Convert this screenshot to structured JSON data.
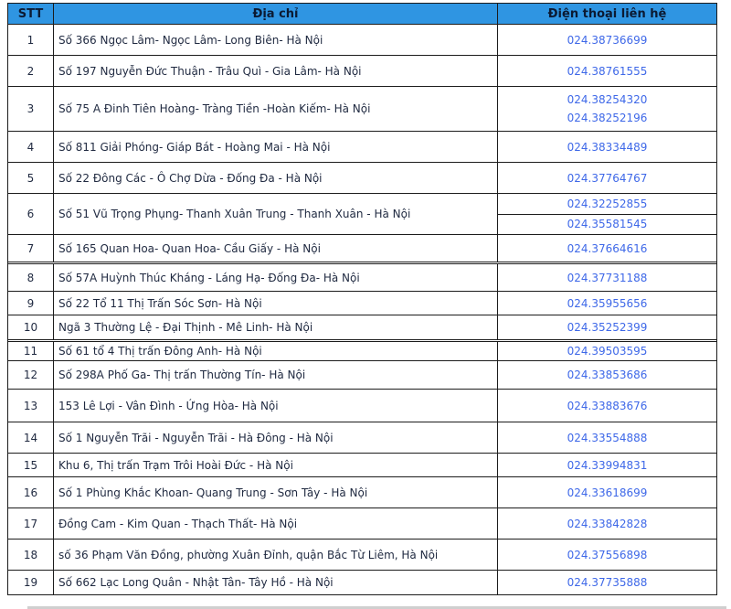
{
  "table": {
    "headers": {
      "stt": "STT",
      "address": "Địa chỉ",
      "phone": "Điện thoại liên hệ"
    },
    "rows": [
      {
        "stt": "1",
        "address": "Số 366 Ngọc Lâm- Ngọc Lâm- Long Biên- Hà Nội",
        "phones": [
          "024.38736699"
        ]
      },
      {
        "stt": "2",
        "address": "Số 197 Nguyễn Đức Thuận - Trâu Quì - Gia Lâm- Hà Nội",
        "phones": [
          "024.38761555"
        ]
      },
      {
        "stt": "3",
        "address": "Số 75 A Đinh Tiên Hoàng- Tràng Tiền -Hoàn Kiếm- Hà Nội",
        "phones": [
          "024.38254320",
          "024.38252196"
        ]
      },
      {
        "stt": "4",
        "address": "Số 811 Giải Phóng- Giáp Bát - Hoàng Mai - Hà Nội",
        "phones": [
          "024.38334489"
        ]
      },
      {
        "stt": "5",
        "address": "Số 22 Đông Các - Ô Chợ Dừa - Đống Đa - Hà Nội",
        "phones": [
          "024.37764767"
        ]
      },
      {
        "stt": "6",
        "address": "Số 51 Vũ Trọng Phụng- Thanh Xuân Trung - Thanh Xuân - Hà Nội",
        "phones": [
          "024.32252855",
          "024.35581545"
        ]
      },
      {
        "stt": "7",
        "address": "Số 165 Quan Hoa- Quan Hoa- Cầu Giấy - Hà Nội",
        "phones": [
          "024.37664616"
        ]
      },
      {
        "stt": "8",
        "address": "Số 57A Huỳnh Thúc Kháng - Láng Hạ- Đống Đa- Hà Nội",
        "phones": [
          "024.37731188"
        ]
      },
      {
        "stt": "9",
        "address": "Số 22 Tổ 11 Thị Trấn Sóc Sơn- Hà Nội",
        "phones": [
          "024.35955656"
        ]
      },
      {
        "stt": "10",
        "address": "Ngã 3 Thường Lệ - Đại Thịnh - Mê Linh- Hà Nội",
        "phones": [
          "024.35252399"
        ]
      },
      {
        "stt": "11",
        "address": "Số 61 tổ 4 Thị trấn Đông Anh- Hà Nội",
        "phones": [
          "024.39503595"
        ]
      },
      {
        "stt": "12",
        "address": "Số 298A Phố Ga- Thị trấn Thường Tín- Hà Nội",
        "phones": [
          "024.33853686"
        ]
      },
      {
        "stt": "13",
        "address": "153 Lê Lợi - Vân Đình - Ứng Hòa- Hà Nội",
        "phones": [
          "024.33883676"
        ]
      },
      {
        "stt": "14",
        "address": "Số 1 Nguyễn Trãi - Nguyễn Trãi - Hà Đông - Hà Nội",
        "phones": [
          "024.33554888"
        ]
      },
      {
        "stt": "15",
        "address": "Khu 6, Thị trấn Trạm Trôi  Hoài Đức - Hà Nội",
        "phones": [
          "024.33994831"
        ]
      },
      {
        "stt": "16",
        "address": "Số 1 Phùng Khắc Khoan- Quang Trung - Sơn Tây - Hà Nội",
        "phones": [
          "024.33618699"
        ]
      },
      {
        "stt": "17",
        "address": "Đồng Cam - Kim Quan - Thạch Thất- Hà Nội",
        "phones": [
          "024.33842828"
        ]
      },
      {
        "stt": "18",
        "address": "số 36 Phạm Văn Đồng, phường Xuân Đỉnh, quận Bắc Từ Liêm, Hà Nội",
        "phones": [
          "024.37556898"
        ]
      },
      {
        "stt": "19",
        "address": "Số 662 Lạc Long Quân - Nhật Tân- Tây Hồ - Hà Nội",
        "phones": [
          "024.37735888"
        ]
      }
    ]
  },
  "colors": {
    "header_bg": "#2f95e2",
    "header_text": "#0b1a33",
    "body_text": "#1f2940",
    "phone_text": "#3e68e8",
    "border": "#1c1c1c"
  }
}
